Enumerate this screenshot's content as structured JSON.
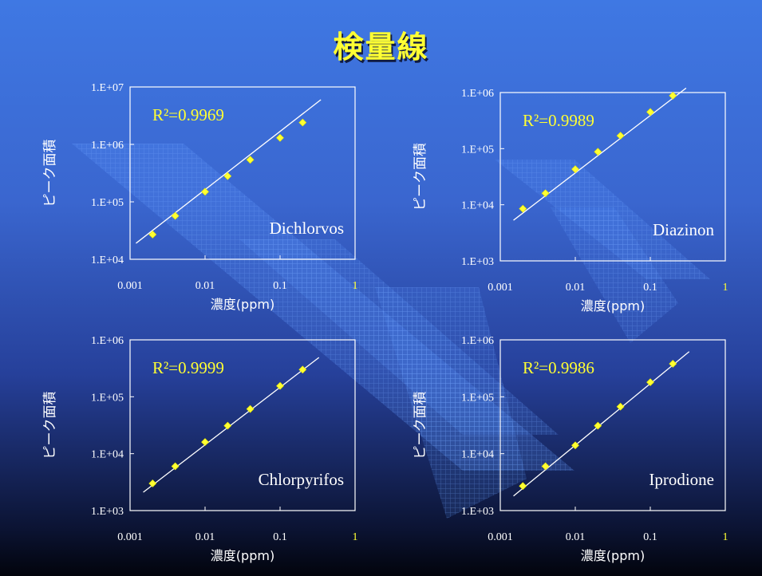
{
  "slide": {
    "title": "検量線"
  },
  "colors": {
    "accent": "#ffff33",
    "marker": "#ffff33",
    "axis": "#ffffff",
    "fit_line": "#ffffff",
    "tick_x_end": "#ffff33"
  },
  "chart_data": [
    {
      "type": "scatter",
      "compound": "Dichlorvos",
      "r2_label": "R²=0.9969",
      "xlabel": "濃度(ppm)",
      "ylabel": "ピーク面積",
      "x_scale": "log",
      "y_scale": "log",
      "xlim": [
        0.001,
        1
      ],
      "ylim": [
        10000,
        10000000
      ],
      "x_ticks": [
        "0.001",
        "0.01",
        "0.1",
        "1"
      ],
      "y_ticks": [
        "1.E+04",
        "1.E+05",
        "1.E+06",
        "1.E+07"
      ],
      "x": [
        0.002,
        0.004,
        0.01,
        0.02,
        0.04,
        0.1,
        0.2
      ],
      "y": [
        27000,
        57000,
        150000,
        280000,
        540000,
        1300000,
        2400000
      ],
      "fit_line": {
        "x": [
          0.0012,
          0.35
        ],
        "y": [
          19000,
          6000000
        ]
      },
      "legend": "none",
      "grid": false
    },
    {
      "type": "scatter",
      "compound": "Diazinon",
      "r2_label": "R²=0.9989",
      "xlabel": "濃度(ppm)",
      "ylabel": "ピーク面積",
      "x_scale": "log",
      "y_scale": "log",
      "xlim": [
        0.001,
        1
      ],
      "ylim": [
        1000,
        1000000
      ],
      "x_ticks": [
        "0.001",
        "0.01",
        "0.1",
        "1"
      ],
      "y_ticks": [
        "1.E+03",
        "1.E+04",
        "1.E+05",
        "1.E+06"
      ],
      "x": [
        0.002,
        0.004,
        0.01,
        0.02,
        0.04,
        0.1,
        0.2
      ],
      "y": [
        8500,
        16000,
        43000,
        88000,
        170000,
        450000,
        880000
      ],
      "fit_line": {
        "x": [
          0.0015,
          0.3
        ],
        "y": [
          5300,
          1200000
        ]
      },
      "legend": "none",
      "grid": false
    },
    {
      "type": "scatter",
      "compound": "Chlorpyrifos",
      "r2_label": "R²=0.9999",
      "xlabel": "濃度(ppm)",
      "ylabel": "ピーク面積",
      "x_scale": "log",
      "y_scale": "log",
      "xlim": [
        0.001,
        1
      ],
      "ylim": [
        1000,
        1000000
      ],
      "x_ticks": [
        "0.001",
        "0.01",
        "0.1",
        "1"
      ],
      "y_ticks": [
        "1.E+03",
        "1.E+04",
        "1.E+05",
        "1.E+06"
      ],
      "x": [
        0.002,
        0.004,
        0.01,
        0.02,
        0.04,
        0.1,
        0.2
      ],
      "y": [
        3000,
        6000,
        16000,
        31000,
        61000,
        155000,
        300000
      ],
      "fit_line": {
        "x": [
          0.0015,
          0.33
        ],
        "y": [
          2100,
          490000
        ]
      },
      "legend": "none",
      "grid": false
    },
    {
      "type": "scatter",
      "compound": "Iprodione",
      "r2_label": "R²=0.9986",
      "xlabel": "濃度(ppm)",
      "ylabel": "ピーク面積",
      "x_scale": "log",
      "y_scale": "log",
      "xlim": [
        0.001,
        1
      ],
      "ylim": [
        1000,
        1000000
      ],
      "x_ticks": [
        "0.001",
        "0.01",
        "0.1",
        "1"
      ],
      "y_ticks": [
        "1.E+03",
        "1.E+04",
        "1.E+05",
        "1.E+06"
      ],
      "x": [
        0.002,
        0.004,
        0.01,
        0.02,
        0.04,
        0.1,
        0.2
      ],
      "y": [
        2700,
        6000,
        14000,
        31000,
        67000,
        180000,
        380000
      ],
      "fit_line": {
        "x": [
          0.0015,
          0.33
        ],
        "y": [
          1800,
          620000
        ]
      },
      "legend": "none",
      "grid": false
    }
  ]
}
